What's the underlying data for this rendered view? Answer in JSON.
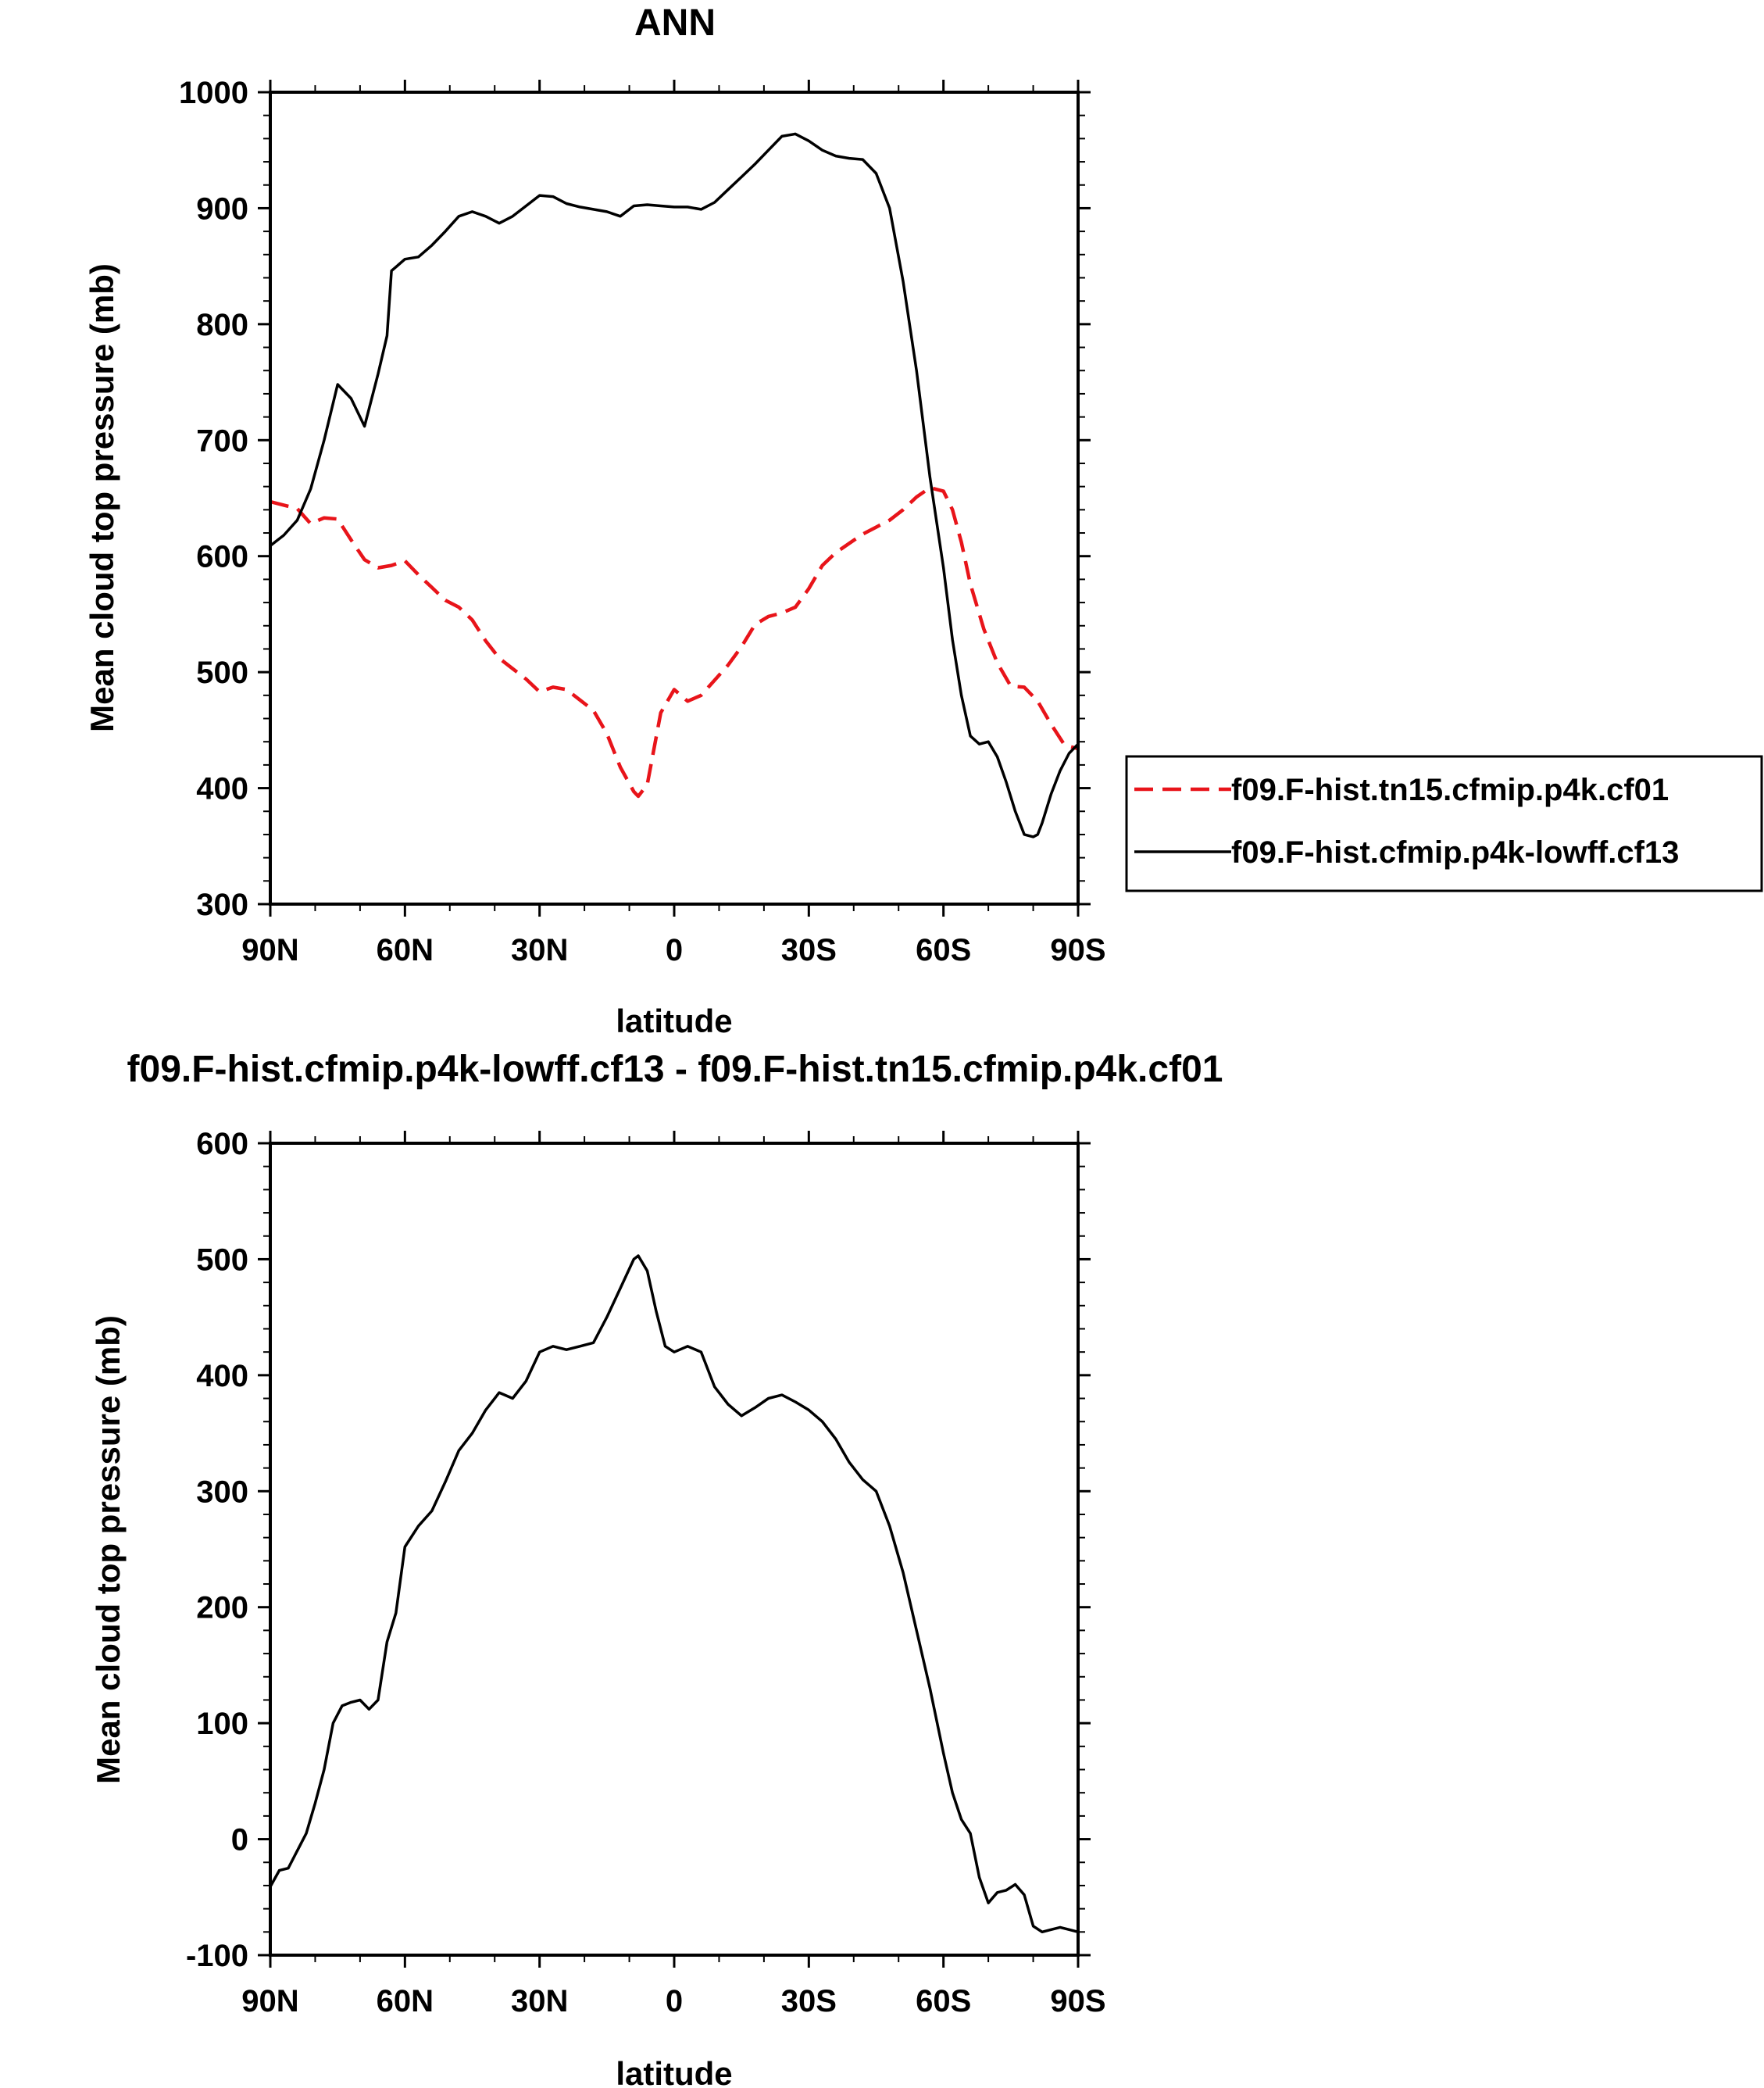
{
  "chart_data": [
    {
      "type": "line",
      "title": "ANN",
      "xlabel": "latitude",
      "ylabel": "Mean cloud top pressure (mb)",
      "x_unit": "degrees latitude (positive = N, negative = S)",
      "xlim": [
        90,
        -90
      ],
      "ylim": [
        300,
        1000
      ],
      "yticks": [
        300,
        400,
        500,
        600,
        700,
        800,
        900,
        1000
      ],
      "xticks": [
        {
          "value": 90,
          "label": "90N"
        },
        {
          "value": 60,
          "label": "60N"
        },
        {
          "value": 30,
          "label": "30N"
        },
        {
          "value": 0,
          "label": "0"
        },
        {
          "value": -30,
          "label": "30S"
        },
        {
          "value": -60,
          "label": "60S"
        },
        {
          "value": -90,
          "label": "90S"
        }
      ],
      "legend_position": "right",
      "series": [
        {
          "name": "f09.F-hist.tn15.cfmip.p4k.cf01",
          "color": "#e8141a",
          "dash": "dashed",
          "x": [
            90,
            87,
            84,
            81,
            78,
            75,
            72,
            69,
            66,
            63,
            60,
            57,
            54,
            51,
            48,
            45,
            42,
            39,
            36,
            33,
            30,
            27,
            24,
            21,
            18,
            15,
            12,
            9,
            8,
            6,
            3,
            0,
            -3,
            -6,
            -9,
            -12,
            -15,
            -18,
            -21,
            -24,
            -27,
            -30,
            -33,
            -36,
            -39,
            -42,
            -45,
            -48,
            -51,
            -54,
            -57,
            -60,
            -62,
            -64,
            -66,
            -69,
            -72,
            -75,
            -78,
            -81,
            -84,
            -87,
            -90
          ],
          "y": [
            647,
            644,
            641,
            628,
            633,
            632,
            614,
            597,
            590,
            592,
            596,
            584,
            573,
            562,
            556,
            545,
            527,
            512,
            503,
            494,
            483,
            487,
            485,
            476,
            467,
            447,
            418,
            397,
            393,
            403,
            465,
            485,
            475,
            480,
            493,
            506,
            522,
            541,
            548,
            551,
            556,
            572,
            592,
            603,
            611,
            619,
            625,
            631,
            640,
            651,
            659,
            656,
            640,
            612,
            576,
            537,
            508,
            488,
            487,
            475,
            455,
            437,
            434
          ]
        },
        {
          "name": "f09.F-hist.cfmip.p4k-lowff.cf13",
          "color": "#000000",
          "dash": "solid",
          "x": [
            90,
            87,
            84,
            81,
            78,
            75,
            72,
            69,
            66,
            64,
            63,
            60,
            57,
            54,
            51,
            48,
            45,
            42,
            39,
            36,
            33,
            30,
            27,
            24,
            21,
            18,
            15,
            12,
            9,
            6,
            3,
            0,
            -3,
            -6,
            -9,
            -12,
            -15,
            -18,
            -21,
            -24,
            -27,
            -30,
            -33,
            -36,
            -39,
            -42,
            -45,
            -48,
            -51,
            -54,
            -57,
            -60,
            -62,
            -64,
            -66,
            -68,
            -70,
            -72,
            -74,
            -76,
            -78,
            -80,
            -81,
            -82,
            -84,
            -86,
            -88,
            -90
          ],
          "y": [
            609,
            618,
            631,
            658,
            700,
            748,
            736,
            712,
            757,
            790,
            846,
            856,
            858,
            868,
            880,
            893,
            897,
            893,
            887,
            893,
            902,
            911,
            910,
            904,
            901,
            899,
            897,
            893,
            902,
            903,
            902,
            901,
            901,
            899,
            905,
            916,
            927,
            938,
            950,
            962,
            964,
            958,
            950,
            945,
            943,
            942,
            930,
            900,
            837,
            760,
            668,
            590,
            528,
            480,
            445,
            438,
            440,
            427,
            405,
            380,
            360,
            358,
            360,
            370,
            395,
            415,
            430,
            438
          ]
        }
      ]
    },
    {
      "type": "line",
      "title": "f09.F-hist.cfmip.p4k-lowff.cf13 - f09.F-hist.tn15.cfmip.p4k.cf01",
      "xlabel": "latitude",
      "ylabel": "Mean cloud top pressure (mb)",
      "x_unit": "degrees latitude (positive = N, negative = S)",
      "xlim": [
        90,
        -90
      ],
      "ylim": [
        -100,
        600
      ],
      "yticks": [
        -100,
        0,
        100,
        200,
        300,
        400,
        500,
        600
      ],
      "xticks": [
        {
          "value": 90,
          "label": "90N"
        },
        {
          "value": 60,
          "label": "60N"
        },
        {
          "value": 30,
          "label": "30N"
        },
        {
          "value": 0,
          "label": "0"
        },
        {
          "value": -30,
          "label": "30S"
        },
        {
          "value": -60,
          "label": "60S"
        },
        {
          "value": -90,
          "label": "90S"
        }
      ],
      "series": [
        {
          "name": "",
          "color": "#000000",
          "dash": "solid",
          "x": [
            90,
            88,
            86,
            84,
            82,
            80,
            78,
            76,
            74,
            72,
            70,
            68,
            66,
            64,
            62,
            60,
            57,
            54,
            51,
            48,
            45,
            42,
            39,
            36,
            33,
            30,
            27,
            24,
            21,
            18,
            15,
            12,
            9,
            8,
            6,
            4,
            2,
            0,
            -3,
            -6,
            -9,
            -12,
            -15,
            -18,
            -21,
            -24,
            -27,
            -30,
            -33,
            -36,
            -39,
            -42,
            -45,
            -48,
            -51,
            -54,
            -57,
            -60,
            -62,
            -64,
            -66,
            -68,
            -70,
            -72,
            -74,
            -76,
            -78,
            -80,
            -82,
            -84,
            -86,
            -88,
            -90
          ],
          "y": [
            -41,
            -27,
            -25,
            -10,
            5,
            31,
            60,
            100,
            115,
            118,
            120,
            112,
            120,
            170,
            195,
            252,
            270,
            283,
            308,
            335,
            350,
            370,
            385,
            380,
            395,
            420,
            425,
            422,
            425,
            428,
            450,
            475,
            500,
            503,
            490,
            455,
            425,
            420,
            425,
            420,
            390,
            375,
            365,
            372,
            380,
            383,
            377,
            370,
            360,
            345,
            325,
            310,
            300,
            270,
            230,
            180,
            130,
            74,
            40,
            17,
            5,
            -33,
            -55,
            -46,
            -44,
            -39,
            -48,
            -75,
            -80,
            -78,
            -76,
            -78,
            -80
          ]
        }
      ]
    }
  ]
}
